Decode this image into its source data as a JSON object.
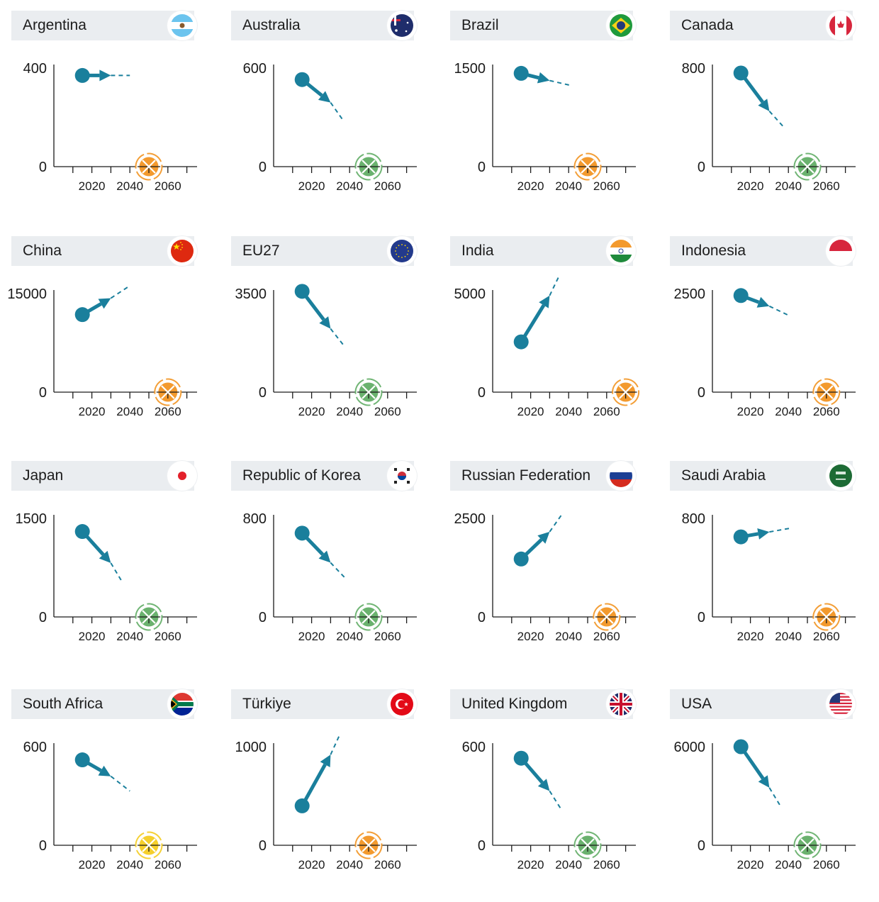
{
  "colors": {
    "trend": "#1a7f9c",
    "header_bg": "#eaedf0",
    "axis": "#1a1a1a",
    "status": {
      "orange": "#f39a2e",
      "green": "#6ab26e",
      "yellow": "#f5cf2c"
    }
  },
  "chart_data": [
    {
      "type": "line",
      "country": "Argentina",
      "flag": "argentina-flag",
      "ylim": [
        0,
        400
      ],
      "yticks": [
        "0",
        "400"
      ],
      "xticks": [
        "2020",
        "2040",
        "2060"
      ],
      "xlim": [
        2000,
        2075
      ],
      "start": {
        "x": 2015,
        "y": 370
      },
      "target": {
        "x": 2030,
        "y": 370
      },
      "projection": {
        "x": 2040,
        "y": 370
      },
      "net_zero_year": 2050,
      "net_zero_status": "orange"
    },
    {
      "type": "line",
      "country": "Australia",
      "flag": "australia-flag",
      "ylim": [
        0,
        600
      ],
      "yticks": [
        "0",
        "600"
      ],
      "xticks": [
        "2020",
        "2040",
        "2060"
      ],
      "xlim": [
        2000,
        2075
      ],
      "start": {
        "x": 2015,
        "y": 530
      },
      "target": {
        "x": 2030,
        "y": 390
      },
      "projection": {
        "x": 2037,
        "y": 275
      },
      "net_zero_year": 2050,
      "net_zero_status": "green"
    },
    {
      "type": "line",
      "country": "Brazil",
      "flag": "brazil-flag",
      "ylim": [
        0,
        1500
      ],
      "yticks": [
        "0",
        "1500"
      ],
      "xticks": [
        "2020",
        "2040",
        "2060"
      ],
      "xlim": [
        2000,
        2075
      ],
      "start": {
        "x": 2015,
        "y": 1420
      },
      "target": {
        "x": 2030,
        "y": 1310
      },
      "projection": {
        "x": 2042,
        "y": 1230
      },
      "net_zero_year": 2050,
      "net_zero_status": "orange"
    },
    {
      "type": "line",
      "country": "Canada",
      "flag": "canada-flag",
      "ylim": [
        0,
        800
      ],
      "yticks": [
        "0",
        "800"
      ],
      "xticks": [
        "2020",
        "2040",
        "2060"
      ],
      "xlim": [
        2000,
        2075
      ],
      "start": {
        "x": 2015,
        "y": 760
      },
      "target": {
        "x": 2030,
        "y": 450
      },
      "projection": {
        "x": 2037,
        "y": 330
      },
      "net_zero_year": 2050,
      "net_zero_status": "green"
    },
    {
      "type": "line",
      "country": "China",
      "flag": "china-flag",
      "ylim": [
        0,
        15000
      ],
      "yticks": [
        "0",
        "15000"
      ],
      "xticks": [
        "2020",
        "2040",
        "2060"
      ],
      "xlim": [
        2000,
        2075
      ],
      "start": {
        "x": 2015,
        "y": 11800
      },
      "target": {
        "x": 2030,
        "y": 14300
      },
      "projection": {
        "x": 2040,
        "y": 16200
      },
      "net_zero_year": 2060,
      "net_zero_status": "orange"
    },
    {
      "type": "line",
      "country": "EU27",
      "flag": "eu-flag",
      "ylim": [
        0,
        3500
      ],
      "yticks": [
        "0",
        "3500"
      ],
      "xticks": [
        "2020",
        "2040",
        "2060"
      ],
      "xlim": [
        2000,
        2075
      ],
      "start": {
        "x": 2015,
        "y": 3580
      },
      "target": {
        "x": 2030,
        "y": 2250
      },
      "projection": {
        "x": 2037,
        "y": 1650
      },
      "net_zero_year": 2050,
      "net_zero_status": "green"
    },
    {
      "type": "line",
      "country": "India",
      "flag": "india-flag",
      "ylim": [
        0,
        5000
      ],
      "yticks": [
        "0",
        "5000"
      ],
      "xticks": [
        "2020",
        "2040",
        "2060"
      ],
      "xlim": [
        2000,
        2075
      ],
      "start": {
        "x": 2015,
        "y": 2550
      },
      "target": {
        "x": 2030,
        "y": 4900
      },
      "projection": {
        "x": 2035,
        "y": 5900
      },
      "net_zero_year": 2070,
      "net_zero_status": "orange"
    },
    {
      "type": "line",
      "country": "Indonesia",
      "flag": "indonesia-flag",
      "ylim": [
        0,
        2500
      ],
      "yticks": [
        "0",
        "2500"
      ],
      "xticks": [
        "2020",
        "2040",
        "2060"
      ],
      "xlim": [
        2000,
        2075
      ],
      "start": {
        "x": 2015,
        "y": 2450
      },
      "target": {
        "x": 2030,
        "y": 2180
      },
      "projection": {
        "x": 2040,
        "y": 1950
      },
      "net_zero_year": 2060,
      "net_zero_status": "orange"
    },
    {
      "type": "line",
      "country": "Japan",
      "flag": "japan-flag",
      "ylim": [
        0,
        1500
      ],
      "yticks": [
        "0",
        "1500"
      ],
      "xticks": [
        "2020",
        "2040",
        "2060"
      ],
      "xlim": [
        2000,
        2075
      ],
      "start": {
        "x": 2015,
        "y": 1300
      },
      "target": {
        "x": 2030,
        "y": 820
      },
      "projection": {
        "x": 2036,
        "y": 530
      },
      "net_zero_year": 2050,
      "net_zero_status": "green"
    },
    {
      "type": "line",
      "country": "Republic of Korea",
      "flag": "korea-flag",
      "ylim": [
        0,
        800
      ],
      "yticks": [
        "0",
        "800"
      ],
      "xticks": [
        "2020",
        "2040",
        "2060"
      ],
      "xlim": [
        2000,
        2075
      ],
      "start": {
        "x": 2015,
        "y": 680
      },
      "target": {
        "x": 2030,
        "y": 440
      },
      "projection": {
        "x": 2038,
        "y": 310
      },
      "net_zero_year": 2050,
      "net_zero_status": "green"
    },
    {
      "type": "line",
      "country": "Russian Federation",
      "flag": "russia-flag",
      "ylim": [
        0,
        2500
      ],
      "yticks": [
        "0",
        "2500"
      ],
      "xticks": [
        "2020",
        "2040",
        "2060"
      ],
      "xlim": [
        2000,
        2075
      ],
      "start": {
        "x": 2015,
        "y": 1470
      },
      "target": {
        "x": 2030,
        "y": 2160
      },
      "projection": {
        "x": 2036,
        "y": 2570
      },
      "net_zero_year": 2060,
      "net_zero_status": "orange"
    },
    {
      "type": "line",
      "country": "Saudi Arabia",
      "flag": "saudi-arabia-flag",
      "ylim": [
        0,
        800
      ],
      "yticks": [
        "0",
        "800"
      ],
      "xticks": [
        "2020",
        "2040",
        "2060"
      ],
      "xlim": [
        2000,
        2075
      ],
      "start": {
        "x": 2015,
        "y": 650
      },
      "target": {
        "x": 2030,
        "y": 690
      },
      "projection": {
        "x": 2041,
        "y": 720
      },
      "net_zero_year": 2060,
      "net_zero_status": "orange"
    },
    {
      "type": "line",
      "country": "South Africa",
      "flag": "south-africa-flag",
      "ylim": [
        0,
        600
      ],
      "yticks": [
        "0",
        "600"
      ],
      "xticks": [
        "2020",
        "2040",
        "2060"
      ],
      "xlim": [
        2000,
        2075
      ],
      "start": {
        "x": 2015,
        "y": 520
      },
      "target": {
        "x": 2030,
        "y": 420
      },
      "projection": {
        "x": 2040,
        "y": 330
      },
      "net_zero_year": 2050,
      "net_zero_status": "yellow"
    },
    {
      "type": "line",
      "country": "Türkiye",
      "flag": "turkiye-flag",
      "ylim": [
        0,
        1000
      ],
      "yticks": [
        "0",
        "1000"
      ],
      "xticks": [
        "2020",
        "2040",
        "2060"
      ],
      "xlim": [
        2000,
        2075
      ],
      "start": {
        "x": 2015,
        "y": 400
      },
      "target": {
        "x": 2030,
        "y": 920
      },
      "projection": {
        "x": 2035,
        "y": 1130
      },
      "net_zero_year": 2050,
      "net_zero_status": "orange"
    },
    {
      "type": "line",
      "country": "United Kingdom",
      "flag": "uk-flag",
      "ylim": [
        0,
        600
      ],
      "yticks": [
        "0",
        "600"
      ],
      "xticks": [
        "2020",
        "2040",
        "2060"
      ],
      "xlim": [
        2000,
        2075
      ],
      "start": {
        "x": 2015,
        "y": 530
      },
      "target": {
        "x": 2030,
        "y": 330
      },
      "projection": {
        "x": 2036,
        "y": 220
      },
      "net_zero_year": 2050,
      "net_zero_status": "green"
    },
    {
      "type": "line",
      "country": "USA",
      "flag": "usa-flag",
      "ylim": [
        0,
        6000
      ],
      "yticks": [
        "0",
        "6000"
      ],
      "xticks": [
        "2020",
        "2040",
        "2060"
      ],
      "xlim": [
        2000,
        2075
      ],
      "start": {
        "x": 2015,
        "y": 6000
      },
      "target": {
        "x": 2030,
        "y": 3500
      },
      "projection": {
        "x": 2036,
        "y": 2350
      },
      "net_zero_year": 2050,
      "net_zero_status": "green"
    }
  ]
}
